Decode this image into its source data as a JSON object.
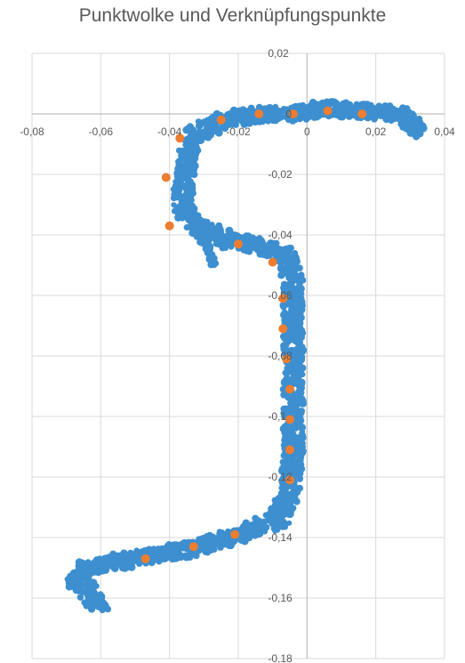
{
  "chart_data": {
    "type": "scatter",
    "title": "Punktwolke und Verknüpfungspunkte",
    "xlim": [
      -0.08,
      0.04
    ],
    "ylim": [
      -0.18,
      0.02
    ],
    "x_ticks": [
      -0.08,
      -0.06,
      -0.04,
      -0.02,
      0,
      0.02,
      0.04
    ],
    "x_tick_labels": [
      "-0,08",
      "-0,06",
      "-0,04",
      "-0,02",
      "0",
      "0,02",
      "0,04"
    ],
    "y_ticks": [
      0.02,
      0,
      -0.02,
      -0.04,
      -0.06,
      -0.08,
      -0.1,
      -0.12,
      -0.14,
      -0.16,
      -0.18
    ],
    "y_tick_labels": [
      "0,02",
      "0",
      "-0,02",
      "-0,04",
      "-0,06",
      "-0,08",
      "-0,1",
      "-0,12",
      "-0,14",
      "-0,16",
      "-0,18"
    ],
    "grid": true,
    "legend": "none",
    "colors": {
      "cloud": "#3d8fd0",
      "tie_points": "#ed7d31",
      "grid": "#d9d9d9",
      "axis": "#bfbfbf",
      "text": "#595959"
    },
    "series": [
      {
        "marker": "filled-circle",
        "path": [
          [
            0.032,
            -0.006
          ],
          [
            0.028,
            -0.0
          ],
          [
            0.015,
            0.001
          ],
          [
            0.006,
            0.002
          ],
          [
            -0.003,
            0.0
          ],
          [
            -0.013,
            0.0
          ],
          [
            -0.024,
            -0.002
          ],
          [
            -0.033,
            -0.007
          ],
          [
            -0.035,
            -0.014
          ],
          [
            -0.036,
            -0.025
          ],
          [
            -0.036,
            -0.031
          ],
          [
            -0.033,
            -0.037
          ],
          [
            -0.022,
            -0.042
          ],
          [
            -0.012,
            -0.044
          ],
          [
            -0.006,
            -0.047
          ],
          [
            -0.004,
            -0.055
          ],
          [
            -0.004,
            -0.07
          ],
          [
            -0.004,
            -0.09
          ],
          [
            -0.004,
            -0.11
          ],
          [
            -0.005,
            -0.125
          ],
          [
            -0.008,
            -0.134
          ],
          [
            -0.02,
            -0.139
          ],
          [
            -0.035,
            -0.144
          ],
          [
            -0.055,
            -0.148
          ],
          [
            -0.065,
            -0.15
          ],
          [
            -0.067,
            -0.155
          ],
          [
            -0.063,
            -0.159
          ],
          [
            -0.06,
            -0.163
          ]
        ],
        "branch_path": [
          [
            -0.033,
            -0.037
          ],
          [
            -0.029,
            -0.044
          ],
          [
            -0.027,
            -0.05
          ]
        ]
      },
      {
        "marker": "filled-circle",
        "points": [
          [
            0.016,
            0.0
          ],
          [
            0.006,
            0.001
          ],
          [
            -0.004,
            0.0
          ],
          [
            -0.014,
            0.0
          ],
          [
            -0.025,
            -0.002
          ],
          [
            -0.037,
            -0.008
          ],
          [
            -0.041,
            -0.021
          ],
          [
            -0.04,
            -0.037
          ],
          [
            -0.02,
            -0.043
          ],
          [
            -0.01,
            -0.049
          ],
          [
            -0.007,
            -0.061
          ],
          [
            -0.007,
            -0.071
          ],
          [
            -0.006,
            -0.081
          ],
          [
            -0.005,
            -0.091
          ],
          [
            -0.005,
            -0.101
          ],
          [
            -0.005,
            -0.111
          ],
          [
            -0.005,
            -0.121
          ],
          [
            -0.021,
            -0.139
          ],
          [
            -0.033,
            -0.143
          ],
          [
            -0.047,
            -0.147
          ]
        ]
      }
    ]
  }
}
